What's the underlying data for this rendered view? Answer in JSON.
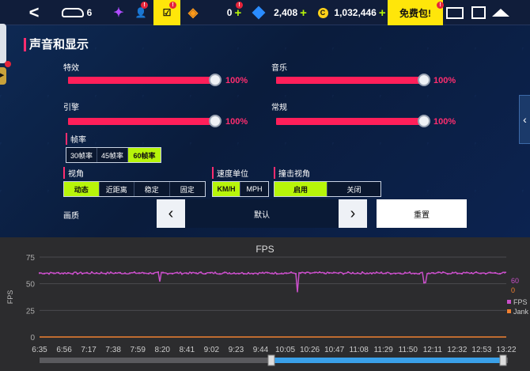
{
  "topbar": {
    "back_glyph": "<",
    "cars_count": "6",
    "currency_zero": "0",
    "tokens": "2,408",
    "credits": "1,032,446",
    "credit_symbol": "C",
    "free_pack": "免费包!",
    "plus": "+",
    "badge": "!"
  },
  "section_title": "声音和显示",
  "sliders": {
    "effects": {
      "label": "特效",
      "value_text": "100%",
      "value": 100
    },
    "music": {
      "label": "音乐",
      "value_text": "100%",
      "value": 100
    },
    "engine": {
      "label": "引擎",
      "value_text": "100%",
      "value": 100
    },
    "general": {
      "label": "常规",
      "value_text": "100%",
      "value": 100
    }
  },
  "framerate": {
    "label": "帧率",
    "options": [
      "30帧率",
      "45帧率",
      "60帧率"
    ],
    "selected": 2
  },
  "view": {
    "label": "视角",
    "options": [
      "动态",
      "近距离",
      "稳定",
      "固定"
    ],
    "selected": 0
  },
  "speed_unit": {
    "label": "速度单位",
    "options": [
      "KM/H",
      "MPH"
    ],
    "selected": 0
  },
  "crash_view": {
    "label": "撞击视角",
    "options": [
      "启用",
      "关闭"
    ],
    "selected": 0
  },
  "quality": {
    "label": "画质",
    "value": "默认",
    "reset_label": "重置"
  },
  "colors": {
    "accent": "#ff1f5a",
    "selected": "#b7f50a",
    "fps_line": "#c94fc9",
    "jank_line": "#f08030"
  },
  "chart_data": {
    "type": "line",
    "title": "FPS",
    "ylabel": "FPS",
    "ylim": [
      0,
      75
    ],
    "yticks": [
      0,
      25,
      50,
      75
    ],
    "xticks": [
      "6:35",
      "6:56",
      "7:17",
      "7:38",
      "7:59",
      "8:20",
      "8:41",
      "9:02",
      "9:23",
      "9:44",
      "10:05",
      "10:26",
      "10:47",
      "11:08",
      "11:29",
      "11:50",
      "12:11",
      "12:32",
      "12:53",
      "13:22"
    ],
    "legend_values": [
      "60",
      "0"
    ],
    "series": [
      {
        "name": "FPS",
        "baseline": 60,
        "dips": [
          {
            "x": "8:20",
            "y": 52
          },
          {
            "x": "10:20",
            "y": 42
          },
          {
            "x": "12:11",
            "y": 51
          }
        ]
      },
      {
        "name": "Jank",
        "baseline": 0
      }
    ]
  }
}
